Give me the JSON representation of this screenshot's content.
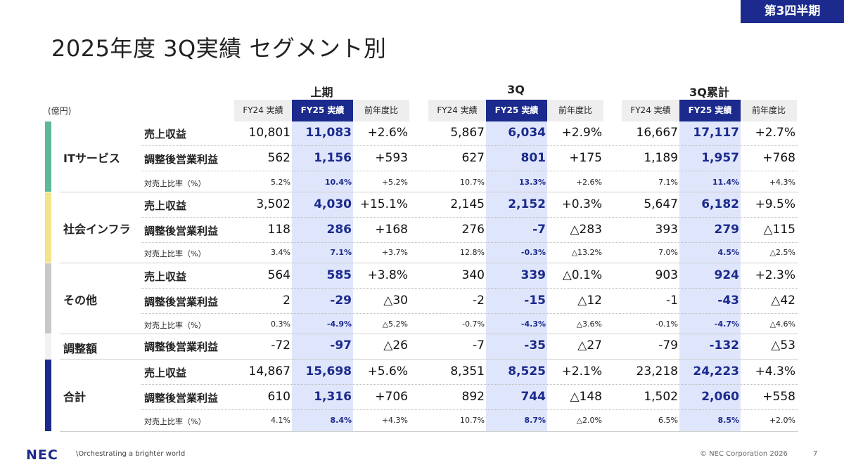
{
  "badge": "第3四半期",
  "title": "2025年度 3Q実績 セグメント別",
  "unit": "(億円)",
  "groups": [
    "上期",
    "3Q",
    "3Q累計"
  ],
  "col_headers": [
    "FY24 実績",
    "FY25 実績",
    "前年度比"
  ],
  "row_labels": {
    "revenue": "売上収益",
    "op_income": "調整後営業利益",
    "margin": "対売上比率（%）"
  },
  "segments": [
    {
      "name": "ITサービス",
      "color": "#5db89a",
      "rows": [
        [
          "10,801",
          "11,083",
          "+2.6%",
          "5,867",
          "6,034",
          "+2.9%",
          "16,667",
          "17,117",
          "+2.7%"
        ],
        [
          "562",
          "1,156",
          "+593",
          "627",
          "801",
          "+175",
          "1,189",
          "1,957",
          "+768"
        ],
        [
          "5.2%",
          "10.4%",
          "+5.2%",
          "10.7%",
          "13.3%",
          "+2.6%",
          "7.1%",
          "11.4%",
          "+4.3%"
        ]
      ]
    },
    {
      "name": "社会インフラ",
      "color": "#f3e38a",
      "rows": [
        [
          "3,502",
          "4,030",
          "+15.1%",
          "2,145",
          "2,152",
          "+0.3%",
          "5,647",
          "6,182",
          "+9.5%"
        ],
        [
          "118",
          "286",
          "+168",
          "276",
          "-7",
          "△283",
          "393",
          "279",
          "△115"
        ],
        [
          "3.4%",
          "7.1%",
          "+3.7%",
          "12.8%",
          "-0.3%",
          "△13.2%",
          "7.0%",
          "4.5%",
          "△2.5%"
        ]
      ]
    },
    {
      "name": "その他",
      "color": "#c8c8c8",
      "rows": [
        [
          "564",
          "585",
          "+3.8%",
          "340",
          "339",
          "△0.1%",
          "903",
          "924",
          "+2.3%"
        ],
        [
          "2",
          "-29",
          "△30",
          "-2",
          "-15",
          "△12",
          "-1",
          "-43",
          "△42"
        ],
        [
          "0.3%",
          "-4.9%",
          "△5.2%",
          "-0.7%",
          "-4.3%",
          "△3.6%",
          "-0.1%",
          "-4.7%",
          "△4.6%"
        ]
      ]
    },
    {
      "name": "調整額",
      "color": "#f2f2f2",
      "rows": [
        [
          "-72",
          "-97",
          "△26",
          "-7",
          "-35",
          "△27",
          "-79",
          "-132",
          "△53"
        ]
      ]
    },
    {
      "name": "合計",
      "color": "#1b2a8c",
      "rows": [
        [
          "14,867",
          "15,698",
          "+5.6%",
          "8,351",
          "8,525",
          "+2.1%",
          "23,218",
          "24,223",
          "+4.3%"
        ],
        [
          "610",
          "1,316",
          "+706",
          "892",
          "744",
          "△148",
          "1,502",
          "2,060",
          "+558"
        ],
        [
          "4.1%",
          "8.4%",
          "+4.3%",
          "10.7%",
          "8.7%",
          "△2.0%",
          "6.5%",
          "8.5%",
          "+2.0%"
        ]
      ]
    }
  ],
  "footer": {
    "logo": "NEC",
    "tagline": "\\Orchestrating a brighter world",
    "copyright": "© NEC Corporation 2026",
    "page": "7"
  }
}
